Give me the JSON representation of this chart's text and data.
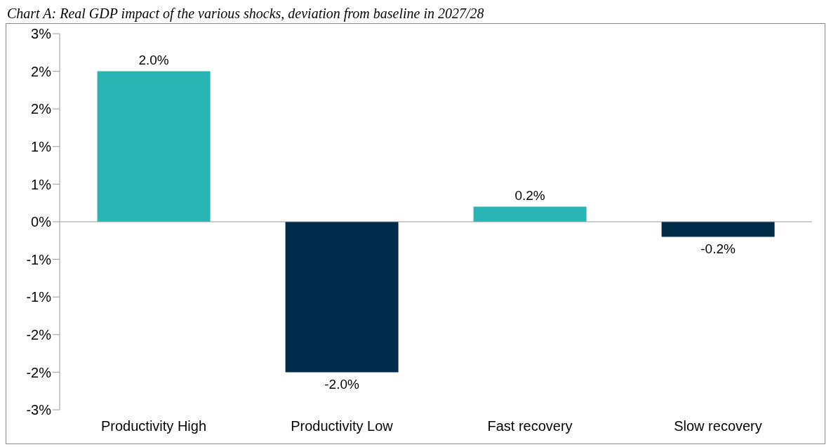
{
  "chart_data": {
    "type": "bar",
    "title": "Chart A: Real GDP impact of the various shocks, deviation from baseline in 2027/28",
    "categories": [
      "Productivity High",
      "Productivity Low",
      "Fast recovery",
      "Slow recovery"
    ],
    "values": [
      2.0,
      -2.0,
      0.2,
      -0.2
    ],
    "colors": [
      "#2ab5b5",
      "#002b49",
      "#2ab5b5",
      "#002b49"
    ],
    "value_labels": [
      "2.0%",
      "-2.0%",
      "0.2%",
      "-0.2%"
    ],
    "ylim": [
      -2.5,
      2.5
    ],
    "yticks": [
      {
        "value": 2.5,
        "label": "3%"
      },
      {
        "value": 2.0,
        "label": "2%"
      },
      {
        "value": 1.5,
        "label": "2%"
      },
      {
        "value": 1.0,
        "label": "1%"
      },
      {
        "value": 0.5,
        "label": "1%"
      },
      {
        "value": 0,
        "label": "0%"
      },
      {
        "value": -0.5,
        "label": "-1%"
      },
      {
        "value": -1.0,
        "label": "-1%"
      },
      {
        "value": -1.5,
        "label": "-2%"
      },
      {
        "value": -2.0,
        "label": "-2%"
      },
      {
        "value": -2.5,
        "label": "-3%"
      }
    ]
  }
}
